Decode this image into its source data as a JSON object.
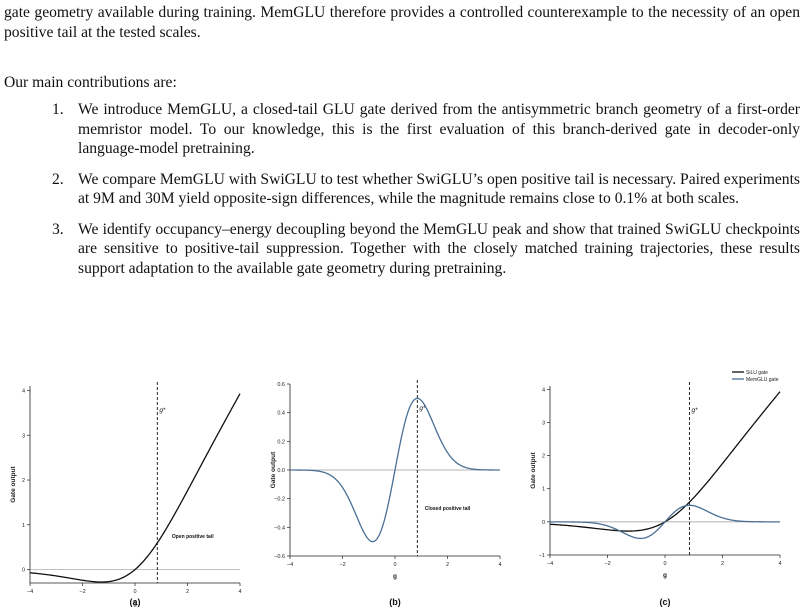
{
  "intro_text": "gate geometry available during training. MemGLU therefore provides a controlled counterexample to the necessity of an open positive tail at the tested scales.",
  "contributions_heading": "Our main contributions are:",
  "contributions": [
    {
      "number": "1.",
      "text": "We introduce MemGLU, a closed-tail GLU gate derived from the antisymmetric branch geometry of a first-order memristor model. To our knowledge, this is the first evaluation of this branch-derived gate in decoder-only language-model pretraining."
    },
    {
      "number": "2.",
      "text": "We compare MemGLU with SwiGLU to test whether SwiGLU’s open positive tail is necessary. Paired experiments at 9M and 30M yield opposite-sign differences, while the magnitude remains close to 0.1% at both scales."
    },
    {
      "number": "3.",
      "text": "We identify occupancy–energy decoupling beyond the MemGLU peak and show that trained SwiGLU checkpoints are sensitive to positive-tail suppression. Together with the closely matched training trajectories, these results support adaptation to the available gate geometry during pretraining."
    }
  ],
  "colors": {
    "silu": "#111111",
    "memglu": "#4a6f94",
    "zero_line": "#9a9a9a"
  },
  "chart_data": [
    {
      "type": "line",
      "panel_label": "(a)",
      "xlabel": "g",
      "ylabel": "Gate output",
      "xlim": [
        -4,
        4
      ],
      "ylim": [
        -0.3,
        4.1
      ],
      "xticks": [
        -4,
        -2,
        0,
        2,
        4
      ],
      "yticks": [
        0,
        1,
        2,
        3,
        4
      ],
      "annotations": [
        {
          "text": "Open positive tail",
          "x": 2.2,
          "y": 0.7
        }
      ],
      "vline": {
        "x": 0.85,
        "label": "g*"
      },
      "series": [
        {
          "function": "silu",
          "color": "#111111",
          "x": [
            -4,
            -3,
            -2,
            -1.28,
            -1,
            0,
            0.85,
            1,
            2,
            3,
            4
          ],
          "y": [
            -0.072,
            -0.142,
            -0.238,
            -0.278,
            -0.269,
            0,
            0.597,
            0.731,
            1.762,
            2.857,
            3.928
          ]
        }
      ]
    },
    {
      "type": "line",
      "panel_label": "(b)",
      "xlabel": "g",
      "ylabel": "Gate output",
      "xlim": [
        -4,
        4
      ],
      "ylim": [
        -0.6,
        0.6
      ],
      "xticks": [
        -4,
        -2,
        0,
        2,
        4
      ],
      "yticks": [
        -0.6,
        -0.4,
        -0.2,
        0.0,
        0.2,
        0.4,
        0.6
      ],
      "annotations": [
        {
          "text": "Closed positive tail",
          "x": 2.0,
          "y": -0.28
        }
      ],
      "vline": {
        "x": 0.85,
        "label": "g*"
      },
      "series": [
        {
          "function": "memglu",
          "color": "#4a6f94",
          "x": [
            -4,
            -3,
            -2,
            -0.85,
            0,
            0.85,
            2,
            3,
            4
          ],
          "y": [
            -0.04,
            -0.12,
            -0.31,
            -0.5,
            0,
            0.5,
            0.31,
            0.12,
            0.04
          ]
        }
      ]
    },
    {
      "type": "line",
      "panel_label": "(c)",
      "xlabel": "g",
      "ylabel": "Gate output",
      "xlim": [
        -4,
        4
      ],
      "ylim": [
        -1,
        4.1
      ],
      "xticks": [
        -4,
        -2,
        0,
        2,
        4
      ],
      "yticks": [
        -1,
        0,
        1,
        2,
        3,
        4
      ],
      "legend": "top-right",
      "vline": {
        "x": 0.85,
        "label": "g*"
      },
      "series": [
        {
          "name": "SiLU gate",
          "function": "silu",
          "color": "#111111",
          "x": [
            -4,
            -3,
            -2,
            -1.28,
            -1,
            0,
            0.85,
            1,
            2,
            3,
            4
          ],
          "y": [
            -0.072,
            -0.142,
            -0.238,
            -0.278,
            -0.269,
            0,
            0.597,
            0.731,
            1.762,
            2.857,
            3.928
          ]
        },
        {
          "name": "MemGLU gate",
          "function": "memglu",
          "color": "#4a6f94",
          "x": [
            -4,
            -3,
            -2,
            -0.85,
            0,
            0.85,
            2,
            3,
            4
          ],
          "y": [
            -0.04,
            -0.12,
            -0.31,
            -0.5,
            0,
            0.5,
            0.31,
            0.12,
            0.04
          ]
        }
      ]
    }
  ]
}
